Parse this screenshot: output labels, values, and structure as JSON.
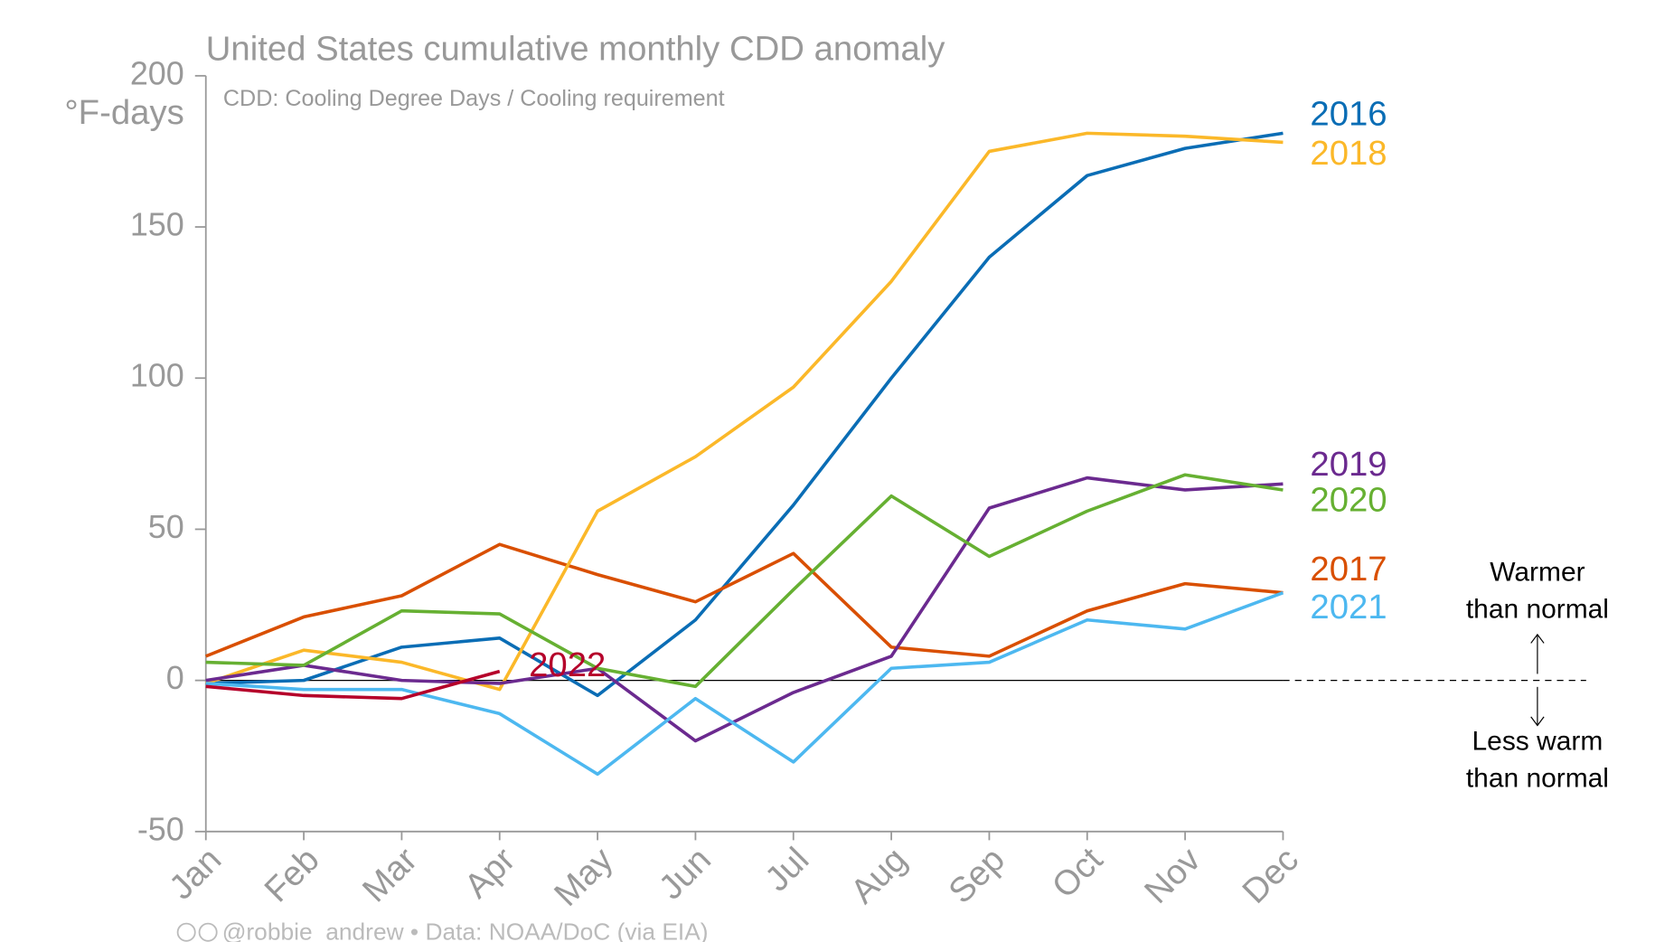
{
  "chart_data": {
    "type": "line",
    "title": "United States cumulative monthly CDD anomaly",
    "subtitle": "CDD: Cooling Degree Days / Cooling requirement",
    "y_label": "°F-days",
    "categories": [
      "Jan",
      "Feb",
      "Mar",
      "Apr",
      "May",
      "Jun",
      "Jul",
      "Aug",
      "Sep",
      "Oct",
      "Nov",
      "Dec"
    ],
    "ylim": [
      -50,
      200
    ],
    "yticks": [
      -50,
      0,
      50,
      100,
      150,
      200
    ],
    "series": [
      {
        "name": "2016",
        "color": "#0a6db5",
        "values": [
          -1,
          0,
          11,
          14,
          -5,
          20,
          58,
          100,
          140,
          167,
          176,
          181
        ]
      },
      {
        "name": "2017",
        "color": "#d94f00",
        "values": [
          8,
          21,
          28,
          45,
          35,
          26,
          42,
          11,
          8,
          23,
          32,
          29
        ]
      },
      {
        "name": "2018",
        "color": "#fbb829",
        "values": [
          -1,
          10,
          6,
          -3,
          56,
          74,
          97,
          132,
          175,
          181,
          180,
          178
        ]
      },
      {
        "name": "2019",
        "color": "#6b2a8f",
        "values": [
          0,
          5,
          0,
          -1,
          4,
          -20,
          -4,
          8,
          57,
          67,
          63,
          65
        ]
      },
      {
        "name": "2020",
        "color": "#66b032",
        "values": [
          6,
          5,
          23,
          22,
          4,
          -2,
          30,
          61,
          41,
          56,
          68,
          63
        ]
      },
      {
        "name": "2021",
        "color": "#4db8f0",
        "values": [
          -1,
          -3,
          -3,
          -11,
          -31,
          -6,
          -27,
          4,
          6,
          20,
          17,
          29
        ]
      },
      {
        "name": "2022",
        "color": "#b5002a",
        "values": [
          -2,
          -5,
          -6,
          3,
          null,
          null,
          null,
          null,
          null,
          null,
          null,
          null
        ]
      }
    ],
    "annotations": [
      {
        "lines": [
          "Warmer",
          "than normal"
        ]
      },
      {
        "lines": [
          "Less warm",
          "than normal"
        ]
      }
    ],
    "footer": "@robbie_andrew  •  Data: NOAA/DoC (via EIA)"
  }
}
